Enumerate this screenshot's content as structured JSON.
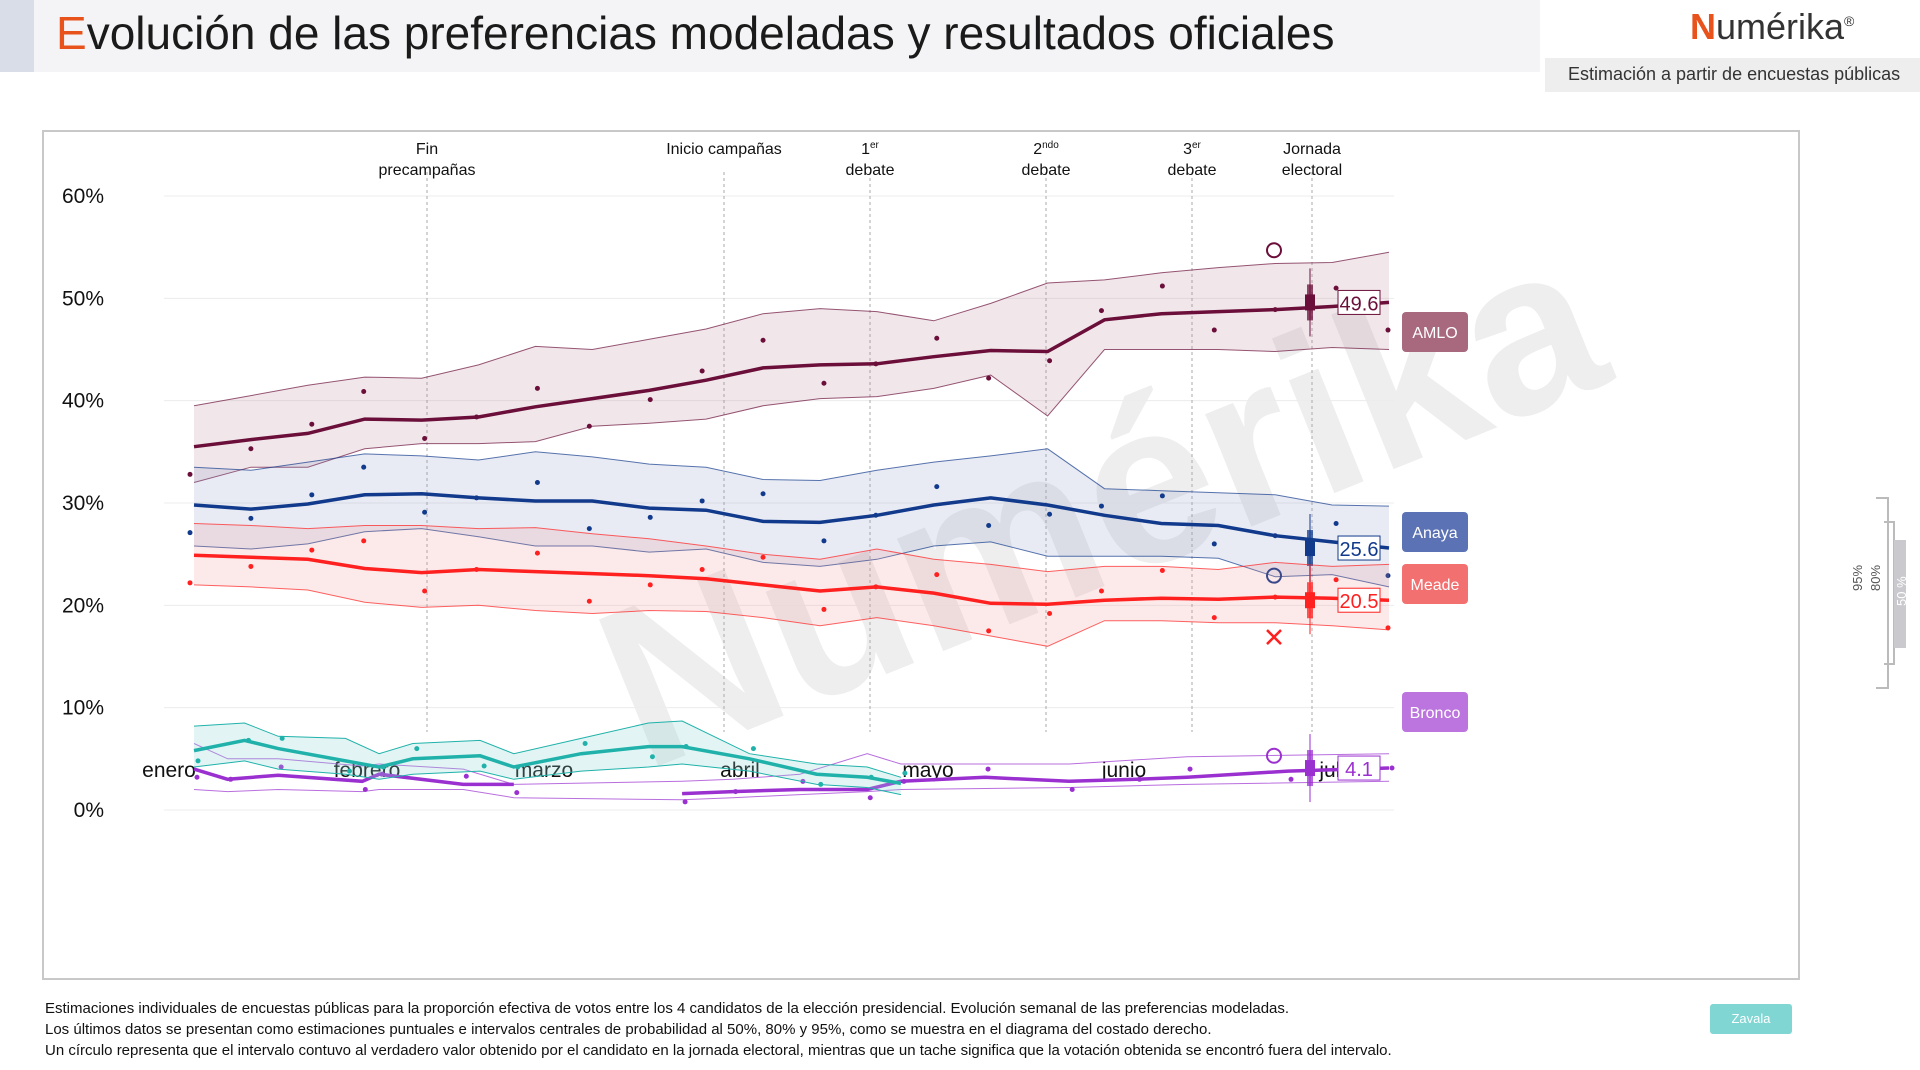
{
  "header": {
    "title_first": "E",
    "title_rest": "volución de las preferencias modeladas y resultados oficiales",
    "logo_text": "uméRika",
    "logo_n": "N",
    "logo_reg": "®",
    "subtitle": "Estimación a partir de encuestas públicas"
  },
  "chart_data": {
    "type": "line",
    "xlabel": "",
    "ylabel": "",
    "ylim": [
      0,
      60
    ],
    "yticks": [
      "0%",
      "10%",
      "20%",
      "30%",
      "40%",
      "50%",
      "60%"
    ],
    "months": [
      "enero",
      "febrero",
      "marzo",
      "abril",
      "mayo",
      "junio",
      "julio"
    ],
    "events": [
      {
        "line1": "Fin",
        "line2": "precampañas",
        "sup": ""
      },
      {
        "line1": "Inicio campañas",
        "line2": "",
        "sup": ""
      },
      {
        "line1": "1",
        "sup": "er",
        "line2": "debate"
      },
      {
        "line1": "2",
        "sup": "ndo",
        "line2": "debate"
      },
      {
        "line1": "3",
        "sup": "er",
        "line2": " debate"
      },
      {
        "line1": "Jornada",
        "line2": "electoral",
        "sup": ""
      }
    ],
    "grid": true,
    "watermark": "Numérika",
    "series": [
      {
        "name": "AMLO",
        "color": "#6b0f3a",
        "band": "#b07a8c",
        "label_bg": "#a8687e",
        "final": "49.6",
        "result_marker": "circle",
        "result": 54.7,
        "week": [
          1,
          3,
          5,
          8,
          11,
          14,
          16,
          19,
          22,
          25,
          27,
          30,
          33,
          36,
          39,
          41,
          44,
          47,
          49,
          51,
          54,
          57,
          59,
          62,
          64,
          66,
          69,
          71
        ],
        "y": [
          35.5,
          36.2,
          36.8,
          38.2,
          38.1,
          38.4,
          39.4,
          40.2,
          41.0,
          42.0,
          43.2,
          43.5,
          43.6,
          44.3,
          44.9,
          44.8,
          47.9,
          48.5,
          48.7,
          48.9,
          49.2,
          49.6,
          null,
          null,
          null,
          null,
          null,
          null
        ],
        "upper": [
          39.5,
          40.5,
          41.5,
          42.3,
          42.2,
          43.5,
          45.3,
          45.0,
          46.0,
          47.0,
          48.5,
          49.0,
          48.7,
          47.8,
          49.5,
          51.5,
          51.8,
          52.5,
          53.0,
          53.4,
          53.5,
          54.5,
          null,
          null,
          null,
          null,
          null,
          null
        ],
        "lower": [
          32.0,
          33.5,
          33.5,
          35.3,
          35.8,
          35.8,
          36.0,
          37.5,
          37.8,
          38.2,
          39.5,
          40.2,
          40.4,
          41.2,
          42.5,
          38.5,
          45.0,
          45.0,
          45.0,
          44.8,
          45.2,
          45.0,
          null,
          null,
          null,
          null,
          null,
          null
        ]
      },
      {
        "name": "Anaya",
        "color": "#123a8c",
        "band": "#7d8fc4",
        "label_bg": "#5b73b4",
        "final": "25.6",
        "result_marker": "circle",
        "result": 22.9,
        "y": [
          29.8,
          29.4,
          29.9,
          30.8,
          30.9,
          30.5,
          30.2,
          30.2,
          29.5,
          29.3,
          28.2,
          28.1,
          28.8,
          29.8,
          30.5,
          29.8,
          28.8,
          28.0,
          27.8,
          26.8,
          26.2,
          25.6,
          null,
          null,
          null,
          null,
          null,
          null
        ],
        "upper": [
          33.5,
          33.2,
          34.0,
          34.8,
          34.6,
          34.2,
          35.0,
          34.5,
          33.8,
          33.5,
          32.3,
          32.2,
          33.2,
          34.0,
          34.6,
          35.3,
          31.4,
          31.2,
          31.0,
          30.8,
          29.8,
          29.7,
          null,
          null,
          null,
          null,
          null,
          null
        ],
        "lower": [
          25.8,
          25.5,
          26.0,
          27.2,
          27.5,
          26.7,
          25.8,
          25.8,
          25.2,
          25.5,
          24.2,
          23.8,
          24.5,
          25.8,
          26.2,
          24.8,
          24.8,
          24.8,
          24.6,
          22.8,
          23.0,
          21.8,
          null,
          null,
          null,
          null,
          null,
          null
        ]
      },
      {
        "name": "Meade",
        "color": "#ff2020",
        "band": "#f08c8c",
        "label_bg": "#f27070",
        "final": "20.5",
        "result_marker": "cross",
        "result": 16.9,
        "y": [
          24.9,
          24.7,
          24.5,
          23.6,
          23.2,
          23.5,
          23.3,
          23.1,
          22.9,
          22.6,
          22.0,
          21.4,
          21.8,
          21.2,
          20.2,
          20.1,
          20.5,
          20.7,
          20.6,
          20.8,
          20.7,
          20.5,
          null,
          null,
          null,
          null,
          null,
          null
        ],
        "upper": [
          28.0,
          27.8,
          27.5,
          27.8,
          27.8,
          27.5,
          27.6,
          27.0,
          26.5,
          25.8,
          25.0,
          24.5,
          25.5,
          24.5,
          24.0,
          23.3,
          23.8,
          23.8,
          23.5,
          24.2,
          23.8,
          24.0,
          null,
          null,
          null,
          null,
          null,
          null
        ],
        "lower": [
          22.0,
          21.8,
          21.5,
          20.3,
          19.8,
          20.0,
          19.5,
          19.2,
          19.5,
          19.4,
          18.8,
          18.0,
          18.8,
          18.0,
          17.0,
          16.0,
          18.5,
          18.5,
          18.3,
          18.3,
          18.0,
          17.6,
          null,
          null,
          null,
          null,
          null,
          null
        ]
      },
      {
        "name": "Bronco",
        "color": "#9b30d0",
        "band": "#c08ae0",
        "label_bg": "#bc74de",
        "final": "4.1",
        "result_marker": "circle",
        "result": 5.3,
        "segments": [
          {
            "x": [
              0,
              2,
              5,
              10,
              11,
              16,
              19
            ],
            "y": [
              4.0,
              3.0,
              3.4,
              2.8,
              3.5,
              2.5,
              2.5
            ]
          },
          {
            "x": [
              29,
              32,
              36,
              40,
              42,
              47,
              52,
              56,
              59,
              65,
              71
            ],
            "y": [
              1.6,
              1.8,
              2.0,
              2.0,
              2.8,
              3.2,
              2.8,
              3.0,
              3.2,
              3.8,
              4.1
            ]
          }
        ],
        "upper": [
          6.5,
          5.0,
          5.0,
          4.3,
          4.5,
          4.0,
          2.5,
          2.8,
          3.0,
          3.5,
          5.5,
          4.5,
          4.5,
          5.2,
          5.5
        ],
        "lower": [
          2.0,
          1.8,
          2.0,
          1.8,
          2.0,
          2.0,
          1.2,
          1.0,
          1.2,
          1.5,
          1.8,
          2.0,
          2.2,
          2.5,
          2.8
        ]
      },
      {
        "name": "Zavala",
        "color": "#20b2aa",
        "band": "#8ad8d4",
        "x": [
          0,
          3,
          5,
          9,
          11,
          13,
          17,
          19,
          23,
          27,
          29,
          33,
          37,
          40,
          42
        ],
        "y": [
          5.8,
          6.8,
          6.0,
          4.8,
          4.2,
          5.0,
          5.3,
          4.2,
          5.5,
          6.2,
          6.2,
          5.0,
          3.5,
          3.2,
          2.6
        ],
        "upper": [
          8.2,
          8.5,
          7.2,
          7.0,
          5.5,
          6.5,
          6.8,
          5.5,
          7.0,
          8.5,
          8.7,
          5.5,
          4.5,
          4.2,
          3.2
        ],
        "lower": [
          4.2,
          4.8,
          4.0,
          3.5,
          3.0,
          3.5,
          3.8,
          3.0,
          3.8,
          4.2,
          4.5,
          3.8,
          2.5,
          2.2,
          1.5
        ]
      }
    ]
  },
  "legend_side": {
    "p95": "95%",
    "p80": "80%",
    "p50": "50 %"
  },
  "zavala_label": "Zavala",
  "notes": [
    "Estimaciones individuales de encuestas públicas para la proporción efectiva de votos entre los 4 candidatos de la elección presidencial. Evolución semanal de las preferencias modeladas.",
    "Los últimos datos se presentan como estimaciones puntuales e intervalos centrales de probabilidad al 50%, 80% y 95%, como se muestra en el diagrama del costado derecho.",
    "Un círculo representa que el intervalo contuvo al verdadero valor obtenido por el candidato en la jornada electoral, mientras que un tache significa que la votación obtenida se encontró fuera del intervalo."
  ]
}
